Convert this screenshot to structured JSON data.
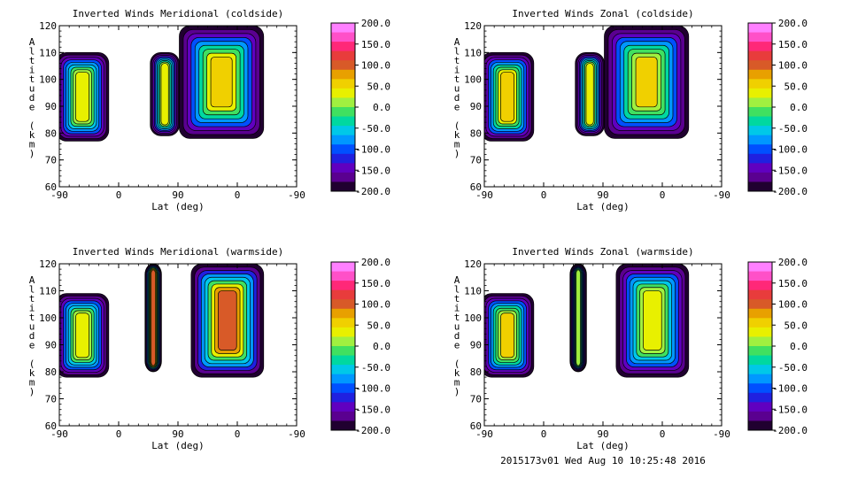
{
  "footer": "2015173v01 Wed Aug 10 10:25:48 2016",
  "colorbar": {
    "labels": [
      "200.0",
      "150.0",
      "100.0",
      "50.0",
      "0.0",
      "-50.0",
      "-100.0",
      "-150.0",
      "-200.0"
    ],
    "colors": [
      "#ff80ff",
      "#ff50c8",
      "#ff2878",
      "#e83c3c",
      "#d85a28",
      "#e8a000",
      "#f0d000",
      "#e8f000",
      "#a0f040",
      "#40e060",
      "#00d8a0",
      "#00c8e8",
      "#0098ff",
      "#0050ff",
      "#2020e0",
      "#6000c0",
      "#5a0090",
      "#200030"
    ]
  },
  "chart_data": [
    {
      "type": "heatmap",
      "title": "Inverted Winds Meridional (coldside)",
      "xlabel": "Lat (deg)",
      "ylabel": "Altitude (km)",
      "xticks": [
        "-90",
        "0",
        "90",
        "0",
        "-90"
      ],
      "yticks": [
        "60",
        "70",
        "80",
        "90",
        "100",
        "110",
        "120"
      ],
      "ylim": [
        60,
        120
      ],
      "zlim": [
        -200,
        200
      ],
      "regions": [
        {
          "x": [
            -95,
            -15
          ],
          "y": [
            77,
            110
          ],
          "peak_value": 40
        },
        {
          "x": [
            48,
            92
          ],
          "y": [
            79,
            110
          ],
          "peak_value": 30
        },
        {
          "x": [
            92,
            220
          ],
          "y": [
            78,
            120
          ],
          "peak_value": 60
        }
      ]
    },
    {
      "type": "heatmap",
      "title": "Inverted Winds Zonal (coldside)",
      "xlabel": "Lat (deg)",
      "ylabel": "Altitude (km)",
      "xticks": [
        "-90",
        "0",
        "90",
        "0",
        "-90"
      ],
      "yticks": [
        "60",
        "70",
        "80",
        "90",
        "100",
        "110",
        "120"
      ],
      "ylim": [
        60,
        120
      ],
      "zlim": [
        -200,
        200
      ],
      "regions": [
        {
          "x": [
            -95,
            -15
          ],
          "y": [
            77,
            110
          ],
          "peak_value": 60
        },
        {
          "x": [
            48,
            92
          ],
          "y": [
            79,
            110
          ],
          "peak_value": 30
        },
        {
          "x": [
            92,
            220
          ],
          "y": [
            78,
            120
          ],
          "peak_value": 50
        }
      ]
    },
    {
      "type": "heatmap",
      "title": "Inverted Winds Meridional (warmside)",
      "xlabel": "Lat (deg)",
      "ylabel": "Altitude (km)",
      "xticks": [
        "-90",
        "0",
        "90",
        "0",
        "-90"
      ],
      "yticks": [
        "60",
        "70",
        "80",
        "90",
        "100",
        "110",
        "120"
      ],
      "ylim": [
        60,
        120
      ],
      "zlim": [
        -200,
        200
      ],
      "regions": [
        {
          "x": [
            -95,
            -15
          ],
          "y": [
            78,
            109
          ],
          "peak_value": 40
        },
        {
          "x": [
            40,
            65
          ],
          "y": [
            80,
            120
          ],
          "peak_value": 100
        },
        {
          "x": [
            110,
            220
          ],
          "y": [
            78,
            120
          ],
          "peak_value": 110
        }
      ]
    },
    {
      "type": "heatmap",
      "title": "Inverted Winds Zonal (warmside)",
      "xlabel": "Lat (deg)",
      "ylabel": "Altitude (km)",
      "xticks": [
        "-90",
        "0",
        "90",
        "0",
        "-90"
      ],
      "yticks": [
        "60",
        "70",
        "80",
        "90",
        "100",
        "110",
        "120"
      ],
      "ylim": [
        60,
        120
      ],
      "zlim": [
        -200,
        200
      ],
      "regions": [
        {
          "x": [
            -95,
            -15
          ],
          "y": [
            78,
            109
          ],
          "peak_value": 50
        },
        {
          "x": [
            40,
            65
          ],
          "y": [
            80,
            120
          ],
          "peak_value": 10
        },
        {
          "x": [
            110,
            220
          ],
          "y": [
            78,
            120
          ],
          "peak_value": 40
        }
      ]
    }
  ]
}
